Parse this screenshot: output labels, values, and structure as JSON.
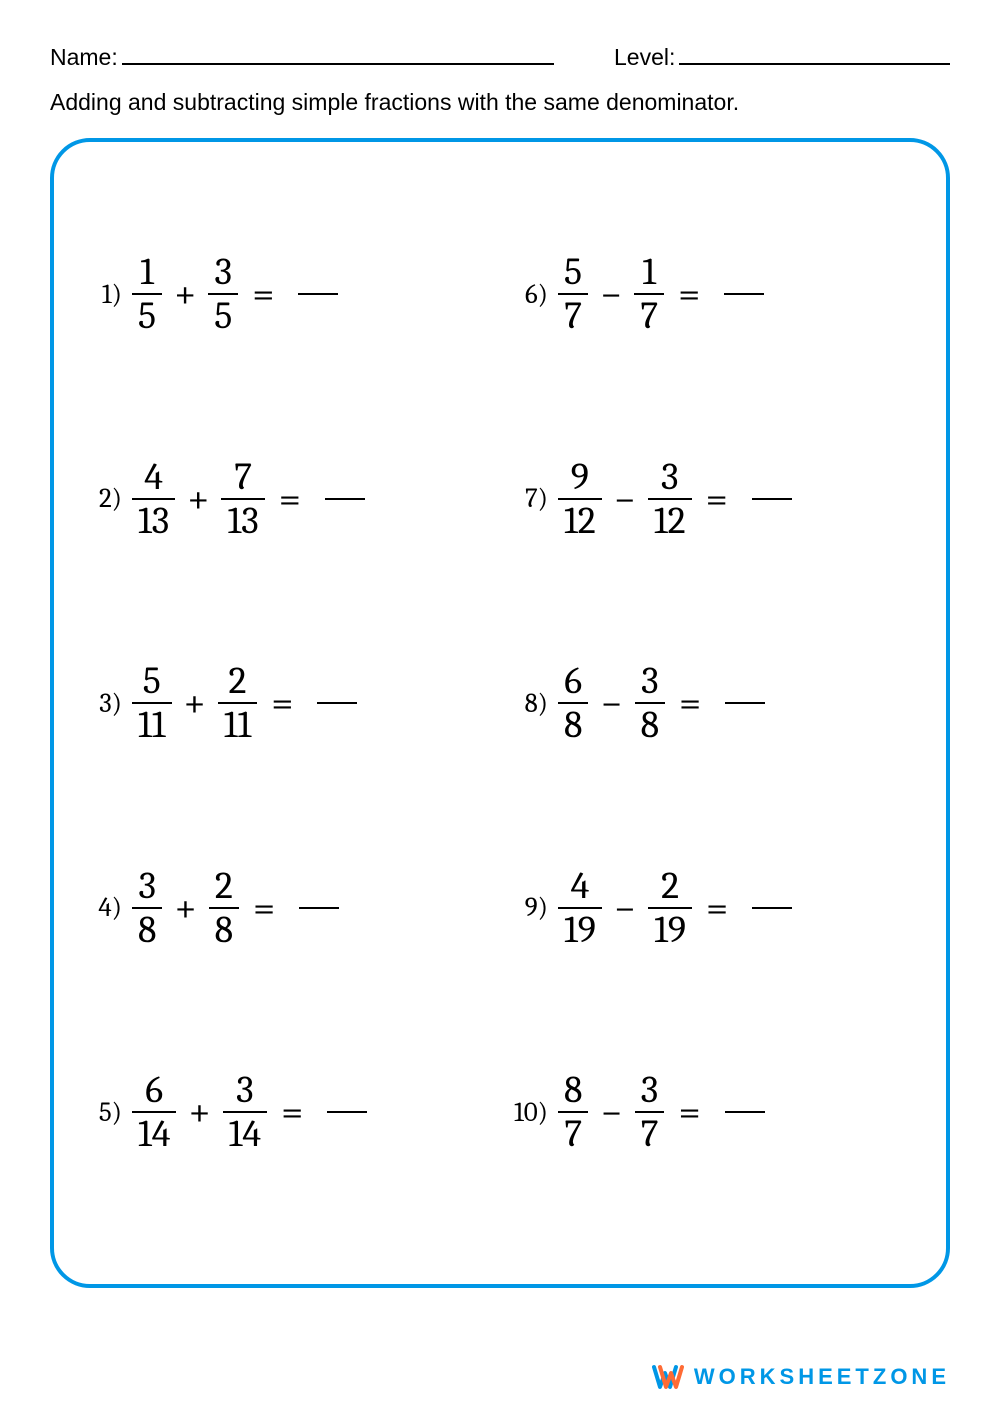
{
  "header": {
    "name_label": "Name:",
    "level_label": "Level:"
  },
  "instruction": "Adding and subtracting simple fractions with the same denominator.",
  "colors": {
    "border": "#0097e6",
    "text": "#000000",
    "background": "#ffffff",
    "brand": "#0097e6",
    "brand_accent": "#ff6b35"
  },
  "border_radius": 40,
  "border_width": 4,
  "fonts": {
    "header": "Century Gothic",
    "math": "Cambria Math",
    "header_size": 23,
    "math_size": 38,
    "problem_number_size": 27
  },
  "problems_left": [
    {
      "n": "1)",
      "a_num": "1",
      "a_den": "5",
      "op": "+",
      "b_num": "3",
      "b_den": "5",
      "eq": "="
    },
    {
      "n": "2)",
      "a_num": "4",
      "a_den": "13",
      "op": "+",
      "b_num": "7",
      "b_den": "13",
      "eq": "="
    },
    {
      "n": "3)",
      "a_num": "5",
      "a_den": "11",
      "op": "+",
      "b_num": "2",
      "b_den": "11",
      "eq": "="
    },
    {
      "n": "4)",
      "a_num": "3",
      "a_den": "8",
      "op": "+",
      "b_num": "2",
      "b_den": "8",
      "eq": "="
    },
    {
      "n": "5)",
      "a_num": "6",
      "a_den": "14",
      "op": "+",
      "b_num": "3",
      "b_den": "14",
      "eq": "="
    }
  ],
  "problems_right": [
    {
      "n": "6)",
      "a_num": "5",
      "a_den": "7",
      "op": "−",
      "b_num": "1",
      "b_den": "7",
      "eq": "="
    },
    {
      "n": "7)",
      "a_num": "9",
      "a_den": "12",
      "op": "−",
      "b_num": "3",
      "b_den": "12",
      "eq": "="
    },
    {
      "n": "8)",
      "a_num": "6",
      "a_den": "8",
      "op": "−",
      "b_num": "3",
      "b_den": "8",
      "eq": "="
    },
    {
      "n": "9)",
      "a_num": "4",
      "a_den": "19",
      "op": "−",
      "b_num": "2",
      "b_den": "19",
      "eq": "="
    },
    {
      "n": "10)",
      "a_num": "8",
      "a_den": "7",
      "op": "−",
      "b_num": "3",
      "b_den": "7",
      "eq": "="
    }
  ],
  "footer": {
    "brand": "WORKSHEETZONE"
  }
}
